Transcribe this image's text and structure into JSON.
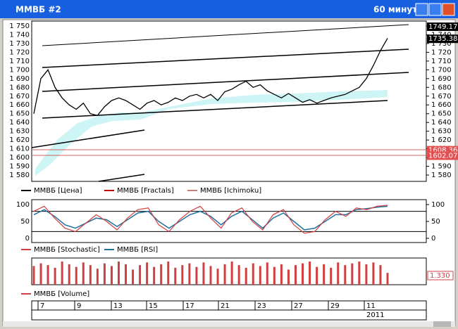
{
  "window": {
    "title": "ММВБ #2",
    "timeframe": "60 минут"
  },
  "price_panel": {
    "ylim": [
      1572.8,
      1755.6
    ],
    "yticks": [
      {
        "value": 1750,
        "label": "1 750"
      },
      {
        "value": 1740,
        "label": "1 740"
      },
      {
        "value": 1730,
        "label": "1 730"
      },
      {
        "value": 1720,
        "label": "1 720"
      },
      {
        "value": 1710,
        "label": "1 710"
      },
      {
        "value": 1700,
        "label": "1 700"
      },
      {
        "value": 1690,
        "label": "1 690"
      },
      {
        "value": 1680,
        "label": "1 680"
      },
      {
        "value": 1670,
        "label": "1 670"
      },
      {
        "value": 1660,
        "label": "1 660"
      },
      {
        "value": 1650,
        "label": "1 650"
      },
      {
        "value": 1640,
        "label": "1 640"
      },
      {
        "value": 1630,
        "label": "1 630"
      },
      {
        "value": 1620,
        "label": "1 620"
      },
      {
        "value": 1610,
        "label": "1 610"
      },
      {
        "value": 1600,
        "label": "1 600"
      },
      {
        "value": 1590,
        "label": "1 590"
      },
      {
        "value": 1580,
        "label": "1 580"
      }
    ],
    "price_labels": [
      {
        "value": 1749.17,
        "color": "#000000"
      },
      {
        "value": 1735.38,
        "color": "#000000"
      },
      {
        "value": 1608.36,
        "color": "#e05050"
      },
      {
        "value": 1602.07,
        "color": "#e05050"
      }
    ],
    "close": [
      1650,
      1690,
      1700,
      1680,
      1668,
      1660,
      1655,
      1662,
      1650,
      1648,
      1658,
      1665,
      1668,
      1665,
      1660,
      1655,
      1662,
      1665,
      1660,
      1663,
      1668,
      1665,
      1670,
      1672,
      1668,
      1672,
      1665,
      1675,
      1678,
      1683,
      1687,
      1680,
      1683,
      1676,
      1672,
      1668,
      1673,
      1668,
      1663,
      1666,
      1662,
      1665,
      1668,
      1670,
      1672,
      1676,
      1680,
      1690,
      1705,
      1722,
      1736
    ],
    "legend": [
      {
        "name": "ММВБ [Цена]",
        "color": "#000000"
      },
      {
        "name": "ММВБ [Fractals]",
        "color": "#c00000"
      },
      {
        "name": "ММВБ [Ichimoku]",
        "color": "#c08080"
      }
    ]
  },
  "osc_panel": {
    "ylim": [
      -12.5,
      114.6
    ],
    "yticks": [
      0,
      50,
      100
    ],
    "levels": [
      20,
      80
    ],
    "stochastic": [
      80,
      95,
      60,
      30,
      20,
      45,
      70,
      50,
      25,
      60,
      85,
      90,
      40,
      20,
      55,
      80,
      95,
      60,
      30,
      75,
      90,
      50,
      25,
      70,
      85,
      40,
      15,
      20,
      55,
      80,
      65,
      90,
      85,
      95,
      98
    ],
    "rsi": [
      70,
      85,
      65,
      40,
      30,
      45,
      60,
      55,
      35,
      55,
      75,
      80,
      50,
      30,
      50,
      70,
      80,
      65,
      40,
      65,
      80,
      55,
      30,
      60,
      75,
      50,
      25,
      30,
      50,
      70,
      70,
      85,
      88,
      92,
      95
    ],
    "legend": [
      {
        "name": "ММВБ [Stochastic]",
        "color": "#d04040"
      },
      {
        "name": "ММВБ [RSI]",
        "color": "#2070a0"
      }
    ]
  },
  "volume_panel": {
    "ylim": [
      0,
      3
    ],
    "last_label": "1.330",
    "volumes": [
      2.1,
      2.4,
      2.2,
      1.9,
      2.6,
      2.3,
      2.0,
      2.5,
      2.2,
      1.8,
      2.4,
      2.1,
      2.6,
      2.3,
      1.7,
      2.2,
      2.5,
      2.0,
      2.3,
      2.6,
      1.9,
      2.2,
      2.4,
      2.0,
      2.5,
      2.1,
      1.8,
      2.3,
      2.6,
      2.2,
      1.9,
      2.4,
      2.1,
      2.5,
      2.0,
      2.3,
      1.7,
      2.2,
      2.4,
      2.6,
      2.0,
      2.3,
      1.9,
      2.5,
      2.2,
      2.4,
      2.6,
      2.3,
      2.5,
      2.2,
      1.33
    ],
    "legend": [
      {
        "name": "ММВБ [Volume]",
        "color": "#d04040"
      }
    ]
  },
  "dates": {
    "labels": [
      "7",
      "9",
      "13",
      "15",
      "17",
      "21",
      "23",
      "27",
      "29",
      "11"
    ],
    "year": "2011"
  }
}
